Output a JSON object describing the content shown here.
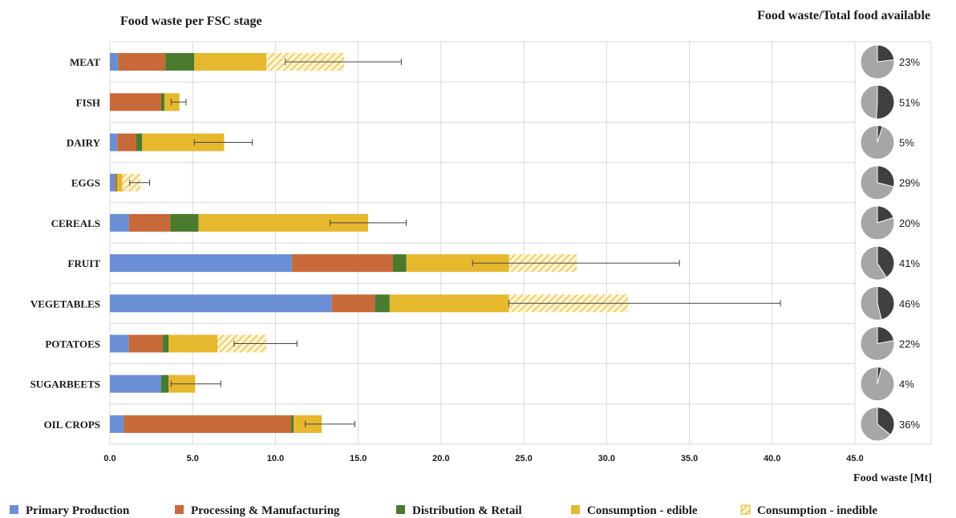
{
  "chart_data": {
    "type": "bar",
    "orientation": "horizontal",
    "stacked": true,
    "title": "Food waste per FSC stage",
    "right_title": "Food waste/Total food available",
    "xlabel": "Food waste [Mt]",
    "xlim": [
      0,
      45
    ],
    "x_ticks": [
      "0.0",
      "5.0",
      "10.0",
      "15.0",
      "20.0",
      "25.0",
      "30.0",
      "35.0",
      "40.0",
      "45.0"
    ],
    "x_tick_values": [
      0,
      5,
      10,
      15,
      20,
      25,
      30,
      35,
      40,
      45
    ],
    "grid": true,
    "legend_position": "bottom",
    "categories": [
      "MEAT",
      "FISH",
      "DAIRY",
      "EGGS",
      "CEREALS",
      "FRUIT",
      "VEGETABLES",
      "POTATOES",
      "SUGARBEETS",
      "OIL CROPS"
    ],
    "series": [
      {
        "name": "Primary Production",
        "color": "#6b8fd4",
        "pattern": "solid",
        "values": [
          0.5,
          0.0,
          0.45,
          0.3,
          1.15,
          11.0,
          13.4,
          1.15,
          3.1,
          0.85
        ]
      },
      {
        "name": "Processing & Manufacturing",
        "color": "#c8693a",
        "pattern": "solid",
        "values": [
          2.85,
          3.1,
          1.15,
          0.1,
          2.5,
          6.1,
          2.6,
          2.05,
          0.0,
          10.1
        ]
      },
      {
        "name": "Distribution & Retail",
        "color": "#4a7a2e",
        "pattern": "solid",
        "values": [
          1.75,
          0.2,
          0.35,
          0.05,
          1.7,
          0.8,
          0.9,
          0.35,
          0.45,
          0.15
        ]
      },
      {
        "name": "Consumption - edible",
        "color": "#e6b82e",
        "pattern": "solid",
        "values": [
          4.35,
          0.9,
          4.95,
          0.3,
          10.25,
          6.2,
          7.2,
          2.95,
          1.6,
          1.7
        ]
      },
      {
        "name": "Consumption - inedible",
        "color": "#e6b82e",
        "pattern": "hatched",
        "values": [
          4.7,
          0.0,
          0.0,
          1.1,
          0.0,
          4.1,
          7.2,
          2.95,
          0.0,
          0.0
        ]
      }
    ],
    "error_bars": [
      {
        "low": 10.6,
        "high": 17.6
      },
      {
        "low": 3.7,
        "high": 4.6
      },
      {
        "low": 5.1,
        "high": 8.6
      },
      {
        "low": 1.2,
        "high": 2.4
      },
      {
        "low": 13.3,
        "high": 17.9
      },
      {
        "low": 21.9,
        "high": 34.4
      },
      {
        "low": 24.1,
        "high": 40.5
      },
      {
        "low": 7.5,
        "high": 11.3
      },
      {
        "low": 3.7,
        "high": 6.7
      },
      {
        "low": 11.8,
        "high": 14.8
      }
    ],
    "ratio_pies": [
      {
        "category": "MEAT",
        "value": 23,
        "label": "23%"
      },
      {
        "category": "FISH",
        "value": 51,
        "label": "51%"
      },
      {
        "category": "DAIRY",
        "value": 5,
        "label": "5%"
      },
      {
        "category": "EGGS",
        "value": 29,
        "label": "29%"
      },
      {
        "category": "CEREALS",
        "value": 20,
        "label": "20%"
      },
      {
        "category": "FRUIT",
        "value": 41,
        "label": "41%"
      },
      {
        "category": "VEGETABLES",
        "value": 46,
        "label": "46%"
      },
      {
        "category": "POTATOES",
        "value": 22,
        "label": "22%"
      },
      {
        "category": "SUGARBEETS",
        "value": 4,
        "label": "4%"
      },
      {
        "category": "OIL CROPS",
        "value": 36,
        "label": "36%"
      }
    ],
    "pie_colors": {
      "waste": "#3f3f3f",
      "rest": "#a6a6a6"
    }
  }
}
